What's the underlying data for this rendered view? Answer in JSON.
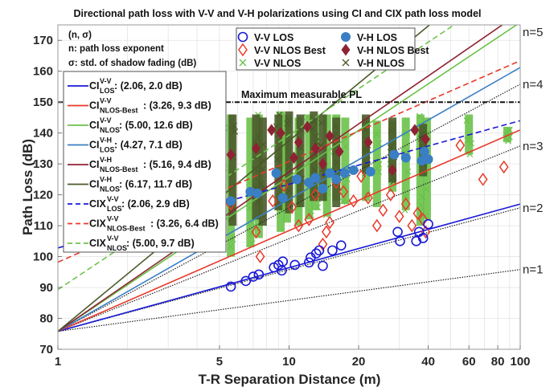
{
  "chart_data": {
    "type": "scatter",
    "title": "Directional path loss with V-V and V-H polarizations using CI and CIX path loss model",
    "xlabel": "T-R Separation Distance (m)",
    "ylabel": "Path Loss (dB)",
    "xscale": "log",
    "xlim": [
      1,
      100
    ],
    "ylim": [
      70,
      175
    ],
    "xticks": [
      1,
      5,
      10,
      20,
      40,
      60,
      80,
      100
    ],
    "xtick_labels": [
      "1",
      "5",
      "10",
      "20",
      "40",
      "60",
      "80",
      "100"
    ],
    "yticks": [
      70,
      80,
      90,
      100,
      110,
      120,
      130,
      140,
      150,
      160,
      170
    ],
    "ytick_labels": [
      "70",
      "80",
      "90",
      "100",
      "110",
      "120",
      "130",
      "140",
      "150",
      "160",
      "170"
    ],
    "grid": true,
    "fspl_1m": 75.8,
    "max_measurable_pl": {
      "value": 150,
      "label": "Maximum measurable PL"
    },
    "reference_lines": [
      {
        "label": "n=1",
        "n": 1
      },
      {
        "label": "n=2",
        "n": 2
      },
      {
        "label": "n=3",
        "n": 3
      },
      {
        "label": "n=4",
        "n": 4
      },
      {
        "label": "n=5",
        "n": 5
      }
    ],
    "annotation": {
      "line1": "(n, σ)",
      "line2": "n: path loss exponent",
      "line3": "σ: std. of shadow fading (dB)"
    },
    "model_lines": [
      {
        "name": "CI",
        "sup": "V-V",
        "sub": "LOS",
        "value": ": (2.06, 2.0 dB)",
        "n": 2.06,
        "offset": 0,
        "color": "#1a1ad6",
        "dash": "solid"
      },
      {
        "name": "CI",
        "sup": "V-V",
        "sub": "NLOS-Best",
        "value": ": (3.26, 9.3 dB)",
        "n": 3.26,
        "offset": 0,
        "color": "#e8392a",
        "dash": "solid"
      },
      {
        "name": "CI",
        "sup": "V-V",
        "sub": "NLOS",
        "value": ": (5.00, 12.6 dB)",
        "n": 5.0,
        "offset": 0,
        "color": "#6cc24a",
        "dash": "solid"
      },
      {
        "name": "CI",
        "sup": "V-H",
        "sub": "LOS",
        "value": ": (4.27, 7.1 dB)",
        "n": 4.27,
        "offset": 0,
        "color": "#3a7fc4",
        "dash": "solid"
      },
      {
        "name": "CI",
        "sup": "V-H",
        "sub": "NLOS-Best",
        "value": ": (5.16, 9.4 dB)",
        "n": 5.16,
        "offset": 0,
        "color": "#8e2233",
        "dash": "solid"
      },
      {
        "name": "CI",
        "sup": "V-H",
        "sub": "NLOS",
        "value": ": (6.17, 11.7 dB)",
        "n": 6.17,
        "offset": 0,
        "color": "#4a5a2a",
        "dash": "solid"
      },
      {
        "name": "CIX",
        "sup": "V-V",
        "sub": "LOS",
        "value": ": (2.06, 2.9 dB)",
        "n": 2.06,
        "offset": 27.0,
        "color": "#1a1ad6",
        "dash": "dashed"
      },
      {
        "name": "CIX",
        "sup": "V-V",
        "sub": "NLOS-Best",
        "value": ": (3.26, 6.4 dB)",
        "n": 3.26,
        "offset": 22.4,
        "color": "#e8392a",
        "dash": "dashed"
      },
      {
        "name": "CIX",
        "sup": "V-V",
        "sub": "NLOS",
        "value": ": (5.00, 9.7 dB)",
        "n": 5.0,
        "offset": 13.5,
        "color": "#6cc24a",
        "dash": "dashed"
      }
    ],
    "series": [
      {
        "name": "V-V LOS",
        "marker": "circle-open",
        "color": "#1a1ad6",
        "points": [
          [
            5.6,
            90.3
          ],
          [
            6.5,
            92.1
          ],
          [
            7.0,
            93.5
          ],
          [
            7.4,
            94.2
          ],
          [
            8.6,
            96.5
          ],
          [
            9.0,
            97.3
          ],
          [
            9.3,
            95.5
          ],
          [
            9.4,
            98.4
          ],
          [
            10.6,
            97.3
          ],
          [
            12.2,
            98.1
          ],
          [
            12.4,
            99.7
          ],
          [
            13.1,
            101.0
          ],
          [
            13.5,
            102.0
          ],
          [
            14.0,
            97.0
          ],
          [
            15.4,
            102.0
          ],
          [
            16.8,
            103.6
          ],
          [
            29.5,
            108.0
          ],
          [
            30.2,
            105.0
          ],
          [
            35.5,
            105.0
          ],
          [
            36.5,
            108.0
          ],
          [
            38.0,
            106.0
          ],
          [
            40.0,
            110.5
          ]
        ]
      },
      {
        "name": "V-V NLOS Best",
        "marker": "diamond-open",
        "color": "#e8392a",
        "points": [
          [
            5.6,
            117.0
          ],
          [
            7.2,
            108.0
          ],
          [
            7.5,
            100.0
          ],
          [
            8.5,
            118.0
          ],
          [
            9.5,
            123.0
          ],
          [
            10.3,
            116.0
          ],
          [
            11.0,
            110.0
          ],
          [
            12.2,
            112.0
          ],
          [
            13.0,
            120.0
          ],
          [
            14.0,
            104.0
          ],
          [
            14.5,
            108.0
          ],
          [
            15.0,
            111.0
          ],
          [
            16.0,
            124.0
          ],
          [
            17.2,
            121.0
          ],
          [
            19.0,
            118.0
          ],
          [
            20.5,
            126.0
          ],
          [
            22.0,
            119.0
          ],
          [
            24.0,
            110.0
          ],
          [
            25.5,
            115.0
          ],
          [
            27.5,
            120.0
          ],
          [
            30.0,
            113.0
          ],
          [
            32.0,
            117.0
          ],
          [
            34.0,
            110.0
          ],
          [
            36.0,
            114.0
          ],
          [
            38.0,
            112.0
          ],
          [
            39.0,
            108.0
          ],
          [
            55.0,
            136.0
          ],
          [
            69.0,
            125.0
          ],
          [
            85.0,
            129.0
          ]
        ]
      },
      {
        "name": "V-V NLOS",
        "marker": "x",
        "color": "#6cc24a",
        "columns": [
          [
            5.6,
            100,
            146
          ],
          [
            6.8,
            103,
            145
          ],
          [
            7.4,
            106,
            146
          ],
          [
            9.2,
            108,
            147
          ],
          [
            9.8,
            111,
            146
          ],
          [
            11.0,
            110,
            145
          ],
          [
            12.2,
            112,
            146
          ],
          [
            13.0,
            115,
            145
          ],
          [
            14.6,
            113,
            146
          ],
          [
            16.0,
            118,
            146
          ],
          [
            17.5,
            117,
            145
          ],
          [
            21.5,
            118,
            145
          ],
          [
            24.0,
            116,
            144
          ],
          [
            28.0,
            121,
            144
          ],
          [
            32.0,
            115,
            145
          ],
          [
            37.0,
            110,
            146
          ],
          [
            39.5,
            112,
            145
          ],
          [
            60.0,
            133,
            146
          ],
          [
            88.0,
            137,
            142
          ]
        ]
      },
      {
        "name": "V-H LOS",
        "marker": "circle-filled",
        "color": "#3a7fc4",
        "points": [
          [
            5.6,
            118.0
          ],
          [
            6.8,
            121.0
          ],
          [
            7.3,
            120.5
          ],
          [
            8.8,
            127.0
          ],
          [
            9.4,
            119.0
          ],
          [
            10.8,
            125.0
          ],
          [
            12.2,
            124.0
          ],
          [
            13.0,
            125.5
          ],
          [
            14.0,
            122.0
          ],
          [
            15.0,
            127.0
          ],
          [
            16.0,
            125.0
          ],
          [
            17.4,
            127.0
          ],
          [
            19.0,
            128.0
          ],
          [
            22.5,
            127.5
          ],
          [
            28.5,
            133.0
          ],
          [
            32.0,
            132.0
          ],
          [
            37.5,
            131.0
          ],
          [
            38.5,
            134.0
          ],
          [
            40.0,
            131.5
          ]
        ]
      },
      {
        "name": "V-H NLOS Best",
        "marker": "diamond-filled",
        "color": "#8e2233",
        "points": [
          [
            5.6,
            133.0
          ],
          [
            7.2,
            135.0
          ],
          [
            8.4,
            141.0
          ],
          [
            9.2,
            140.0
          ],
          [
            10.5,
            132.0
          ],
          [
            11.0,
            137.0
          ],
          [
            12.0,
            142.0
          ],
          [
            13.0,
            135.0
          ],
          [
            14.0,
            130.0
          ],
          [
            15.0,
            139.0
          ],
          [
            16.5,
            134.0
          ],
          [
            22.0,
            137.0
          ],
          [
            28.0,
            128.0
          ],
          [
            35.0,
            141.0
          ],
          [
            39.0,
            138.0
          ]
        ]
      },
      {
        "name": "V-H NLOS",
        "marker": "x",
        "color": "#4a5a2a",
        "columns": [
          [
            5.7,
            110,
            146
          ],
          [
            7.2,
            112,
            146
          ],
          [
            7.7,
            110,
            145
          ],
          [
            9.0,
            115,
            146
          ],
          [
            10.0,
            114,
            147
          ],
          [
            11.2,
            116,
            146
          ],
          [
            12.8,
            118,
            147
          ],
          [
            14.0,
            118,
            146
          ],
          [
            16.0,
            116,
            145
          ],
          [
            21.5,
            127,
            146
          ],
          [
            28.0,
            124,
            145
          ],
          [
            38.0,
            126,
            143
          ]
        ]
      }
    ]
  }
}
